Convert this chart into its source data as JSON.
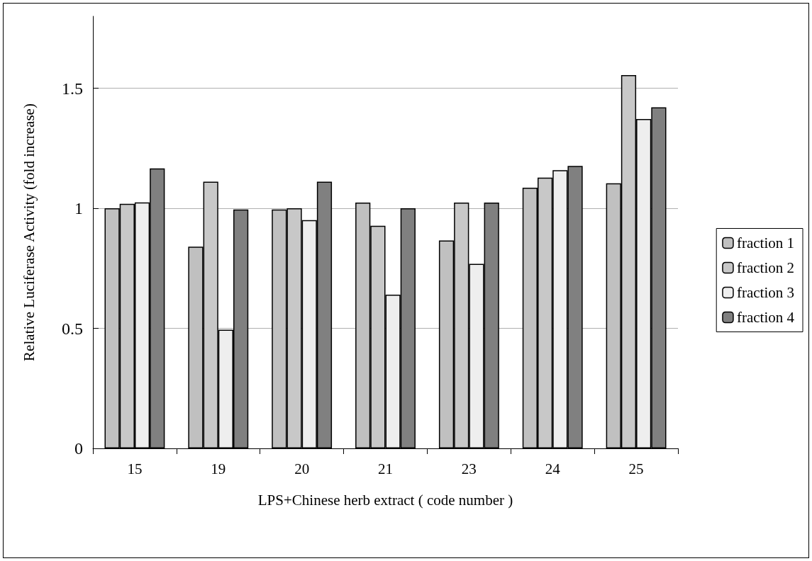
{
  "chart_data": {
    "type": "bar",
    "xlabel": "LPS+Chinese herb extract ( code number )",
    "ylabel": "Relative Luciferase Activity (fold increase)",
    "categories": [
      "15",
      "19",
      "20",
      "21",
      "23",
      "24",
      "25"
    ],
    "series": [
      {
        "name": "fraction 1",
        "color": "#c0c0c0",
        "values": [
          1.0,
          0.84,
          0.995,
          1.024,
          0.866,
          1.086,
          1.104
        ]
      },
      {
        "name": "fraction 2",
        "color": "#c8c8c8",
        "values": [
          1.019,
          1.111,
          1.0,
          0.927,
          1.024,
          1.128,
          1.555
        ]
      },
      {
        "name": "fraction 3",
        "color": "#eeeeee",
        "values": [
          1.025,
          0.494,
          0.951,
          0.64,
          0.769,
          1.159,
          1.372
        ]
      },
      {
        "name": "fraction 4",
        "color": "#808080",
        "values": [
          1.166,
          0.995,
          1.111,
          1.0,
          1.024,
          1.177,
          1.421
        ]
      }
    ],
    "ylim": [
      0,
      1.8
    ],
    "yticks": [
      0,
      0.5,
      1,
      1.5
    ],
    "grid": "y",
    "legend": "right"
  }
}
